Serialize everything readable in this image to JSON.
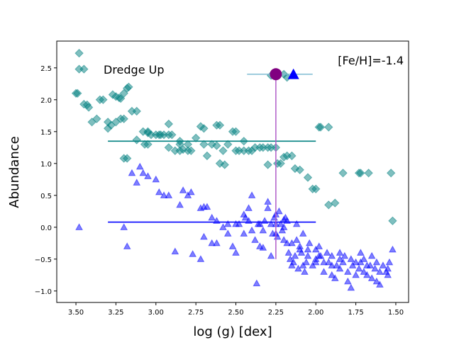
{
  "chart_data": {
    "type": "scatter",
    "title": "",
    "xlabel": "log (g) [dex]",
    "ylabel": "Abundance",
    "xlim": [
      3.62,
      1.42
    ],
    "ylim": [
      -1.18,
      2.92
    ],
    "xticks": [
      "3.50",
      "3.25",
      "3.00",
      "2.75",
      "2.50",
      "2.25",
      "2.00",
      "1.75",
      "1.50"
    ],
    "xtick_values": [
      3.5,
      3.25,
      3.0,
      2.75,
      2.5,
      2.25,
      2.0,
      1.75,
      1.5
    ],
    "yticks": [
      "2.5",
      "2.0",
      "1.5",
      "1.0",
      "0.5",
      "0.0",
      "−0.5",
      "−1.0"
    ],
    "ytick_values": [
      2.5,
      2.0,
      1.5,
      1.0,
      0.5,
      0.0,
      -0.5,
      -1.0
    ],
    "annotations": {
      "dredge_up": "Dredge Up",
      "metallicity": "[Fe/H]=-1.4"
    },
    "colors": {
      "teal": "#008080",
      "blue": "#0000ff",
      "errorbar_h": "#7fbcd2",
      "errorbar_v": "#b05cc8",
      "marker_purple": "#800080"
    },
    "hlines": [
      {
        "name": "teal-mean-line",
        "y": 1.35,
        "x_from": 3.3,
        "x_to": 2.0,
        "color": "#008080"
      },
      {
        "name": "blue-mean-line",
        "y": 0.08,
        "x_from": 3.3,
        "x_to": 2.0,
        "color": "#0000ff"
      }
    ],
    "errorbars": {
      "horizontal": {
        "y": 2.4,
        "x_from": 2.43,
        "x_to": 2.02
      },
      "vertical": {
        "x": 2.25,
        "y_from": 2.4,
        "y_to": -0.5
      }
    },
    "markers": [
      {
        "name": "dredge-up-circle",
        "shape": "circle",
        "x": 2.25,
        "y": 2.4,
        "color": "#800080"
      },
      {
        "name": "dredge-up-triangle",
        "shape": "triangle",
        "x": 2.14,
        "y": 2.4,
        "color": "#0000ff"
      }
    ],
    "series": [
      {
        "name": "teal-diamonds",
        "marker": "diamond",
        "color": "#008080",
        "points": [
          [
            3.48,
            2.73
          ],
          [
            3.48,
            2.48
          ],
          [
            3.45,
            2.48
          ],
          [
            3.5,
            2.1
          ],
          [
            3.49,
            2.1
          ],
          [
            3.45,
            1.93
          ],
          [
            3.43,
            1.92
          ],
          [
            3.42,
            1.88
          ],
          [
            3.4,
            1.65
          ],
          [
            3.37,
            1.7
          ],
          [
            3.35,
            2.0
          ],
          [
            3.33,
            2.0
          ],
          [
            3.3,
            1.65
          ],
          [
            3.3,
            1.55
          ],
          [
            3.28,
            1.6
          ],
          [
            3.25,
            2.05
          ],
          [
            3.27,
            2.08
          ],
          [
            3.23,
            2.03
          ],
          [
            3.22,
            2.02
          ],
          [
            3.2,
            2.1
          ],
          [
            3.18,
            2.18
          ],
          [
            3.17,
            2.2
          ],
          [
            3.2,
            1.7
          ],
          [
            3.22,
            1.7
          ],
          [
            3.25,
            1.65
          ],
          [
            3.15,
            1.82
          ],
          [
            3.12,
            1.82
          ],
          [
            3.08,
            1.5
          ],
          [
            3.05,
            1.48
          ],
          [
            3.03,
            1.45
          ],
          [
            3.0,
            1.45
          ],
          [
            2.98,
            1.45
          ],
          [
            2.95,
            1.45
          ],
          [
            2.92,
            1.45
          ],
          [
            2.9,
            1.45
          ],
          [
            2.92,
            1.62
          ],
          [
            2.88,
            1.2
          ],
          [
            2.85,
            1.35
          ],
          [
            2.83,
            1.22
          ],
          [
            2.8,
            1.2
          ],
          [
            2.78,
            1.2
          ],
          [
            2.75,
            1.4
          ],
          [
            2.72,
            1.58
          ],
          [
            2.7,
            1.55
          ],
          [
            2.68,
            1.12
          ],
          [
            2.65,
            1.3
          ],
          [
            2.62,
            1.6
          ],
          [
            2.6,
            1.6
          ],
          [
            2.58,
            1.2
          ],
          [
            2.55,
            1.3
          ],
          [
            2.52,
            1.5
          ],
          [
            2.5,
            1.5
          ],
          [
            2.48,
            1.2
          ],
          [
            2.45,
            1.35
          ],
          [
            2.42,
            1.2
          ],
          [
            2.4,
            1.2
          ],
          [
            2.38,
            1.25
          ],
          [
            2.35,
            1.25
          ],
          [
            2.33,
            1.25
          ],
          [
            2.3,
            1.25
          ],
          [
            2.28,
            1.25
          ],
          [
            2.25,
            1.25
          ],
          [
            2.24,
            1.0
          ],
          [
            2.22,
            1.0
          ],
          [
            2.2,
            1.1
          ],
          [
            2.18,
            1.12
          ],
          [
            2.15,
            1.12
          ],
          [
            2.13,
            0.92
          ],
          [
            2.1,
            0.9
          ],
          [
            2.05,
            0.78
          ],
          [
            2.02,
            0.6
          ],
          [
            2.0,
            0.6
          ],
          [
            1.98,
            1.57
          ],
          [
            1.97,
            1.57
          ],
          [
            1.92,
            1.57
          ],
          [
            1.92,
            0.35
          ],
          [
            1.88,
            0.38
          ],
          [
            1.83,
            0.85
          ],
          [
            1.73,
            0.85
          ],
          [
            1.72,
            0.85
          ],
          [
            1.67,
            0.85
          ],
          [
            1.53,
            0.85
          ],
          [
            1.52,
            0.1
          ],
          [
            3.07,
            1.3
          ],
          [
            3.05,
            1.3
          ],
          [
            3.18,
            1.08
          ],
          [
            3.2,
            1.08
          ],
          [
            2.57,
            0.98
          ],
          [
            2.6,
            1.0
          ],
          [
            2.62,
            1.28
          ],
          [
            2.45,
            1.2
          ],
          [
            2.3,
            0.98
          ],
          [
            3.12,
            1.37
          ],
          [
            2.97,
            1.45
          ],
          [
            2.85,
            1.2
          ],
          [
            2.92,
            1.25
          ],
          [
            2.7,
            1.3
          ],
          [
            2.8,
            1.3
          ],
          [
            2.28,
            2.38
          ],
          [
            2.2,
            2.4
          ],
          [
            2.18,
            2.35
          ],
          [
            3.05,
            1.5
          ],
          [
            2.85,
            1.3
          ],
          [
            2.5,
            1.2
          ]
        ]
      },
      {
        "name": "blue-triangles",
        "marker": "triangle",
        "color": "#0000ff",
        "points": [
          [
            3.48,
            0.0
          ],
          [
            3.2,
            0.0
          ],
          [
            3.1,
            0.95
          ],
          [
            3.08,
            0.85
          ],
          [
            3.05,
            0.8
          ],
          [
            3.0,
            0.75
          ],
          [
            2.98,
            0.55
          ],
          [
            2.95,
            0.5
          ],
          [
            3.12,
            0.7
          ],
          [
            3.15,
            0.85
          ],
          [
            2.92,
            0.5
          ],
          [
            2.85,
            0.35
          ],
          [
            2.83,
            0.58
          ],
          [
            2.8,
            0.5
          ],
          [
            2.78,
            0.55
          ],
          [
            2.72,
            0.3
          ],
          [
            2.7,
            0.32
          ],
          [
            2.68,
            0.32
          ],
          [
            3.18,
            -0.3
          ],
          [
            2.88,
            -0.38
          ],
          [
            2.77,
            -0.42
          ],
          [
            2.72,
            -0.5
          ],
          [
            2.65,
            -0.25
          ],
          [
            2.62,
            -0.25
          ],
          [
            2.55,
            -0.1
          ],
          [
            2.52,
            -0.3
          ],
          [
            2.5,
            -0.4
          ],
          [
            2.48,
            0.05
          ],
          [
            2.45,
            0.2
          ],
          [
            2.42,
            0.1
          ],
          [
            2.4,
            -0.05
          ],
          [
            2.38,
            -0.2
          ],
          [
            2.36,
            0.05
          ],
          [
            2.35,
            -0.3
          ],
          [
            2.33,
            -0.32
          ],
          [
            2.32,
            0.1
          ],
          [
            2.3,
            0.3
          ],
          [
            2.28,
            -0.45
          ],
          [
            2.27,
            -0.1
          ],
          [
            2.26,
            0.15
          ],
          [
            2.25,
            0.2
          ],
          [
            2.24,
            -0.15
          ],
          [
            2.23,
            0.25
          ],
          [
            2.22,
            0.05
          ],
          [
            2.21,
            -0.05
          ],
          [
            2.2,
            0.0
          ],
          [
            2.19,
            0.15
          ],
          [
            2.18,
            -0.25
          ],
          [
            2.17,
            -0.4
          ],
          [
            2.16,
            -0.5
          ],
          [
            2.15,
            -0.6
          ],
          [
            2.14,
            -0.55
          ],
          [
            2.13,
            -0.45
          ],
          [
            2.12,
            -0.2
          ],
          [
            2.11,
            -0.65
          ],
          [
            2.1,
            -0.3
          ],
          [
            2.09,
            -0.4
          ],
          [
            2.08,
            -0.6
          ],
          [
            2.07,
            -0.7
          ],
          [
            2.06,
            -0.55
          ],
          [
            2.05,
            -0.35
          ],
          [
            2.04,
            -0.25
          ],
          [
            2.02,
            -0.6
          ],
          [
            2.0,
            -0.55
          ],
          [
            1.98,
            -0.3
          ],
          [
            1.97,
            -0.45
          ],
          [
            1.95,
            -0.7
          ],
          [
            1.93,
            -0.4
          ],
          [
            1.92,
            -0.55
          ],
          [
            1.9,
            -0.75
          ],
          [
            1.88,
            -0.8
          ],
          [
            1.87,
            -0.6
          ],
          [
            1.85,
            -0.4
          ],
          [
            1.83,
            -0.55
          ],
          [
            1.82,
            -0.45
          ],
          [
            1.8,
            -0.85
          ],
          [
            1.78,
            -0.95
          ],
          [
            1.77,
            -0.6
          ],
          [
            1.75,
            -0.55
          ],
          [
            1.73,
            -0.65
          ],
          [
            1.72,
            -0.4
          ],
          [
            1.7,
            -0.5
          ],
          [
            1.68,
            -0.75
          ],
          [
            1.66,
            -0.6
          ],
          [
            1.65,
            -0.45
          ],
          [
            1.63,
            -0.65
          ],
          [
            1.62,
            -0.85
          ],
          [
            1.6,
            -0.7
          ],
          [
            1.58,
            -0.6
          ],
          [
            1.56,
            -0.7
          ],
          [
            1.55,
            -0.65
          ],
          [
            1.54,
            -0.55
          ],
          [
            1.52,
            -0.35
          ],
          [
            2.37,
            -0.88
          ],
          [
            2.45,
            -0.1
          ],
          [
            2.33,
            -0.05
          ],
          [
            2.3,
            0.4
          ],
          [
            2.4,
            0.5
          ],
          [
            2.5,
            0.05
          ],
          [
            2.58,
            0.0
          ],
          [
            2.62,
            0.1
          ],
          [
            2.65,
            0.15
          ],
          [
            2.35,
            0.05
          ],
          [
            2.25,
            -0.1
          ],
          [
            2.2,
            -0.2
          ],
          [
            2.15,
            -0.25
          ],
          [
            2.1,
            -0.35
          ],
          [
            2.05,
            -0.45
          ],
          [
            2.0,
            -0.5
          ],
          [
            1.95,
            -0.55
          ],
          [
            1.9,
            -0.6
          ],
          [
            1.85,
            -0.65
          ],
          [
            1.8,
            -0.7
          ],
          [
            1.75,
            -0.75
          ],
          [
            1.7,
            -0.7
          ],
          [
            1.65,
            -0.8
          ],
          [
            1.6,
            -0.9
          ],
          [
            1.55,
            -0.75
          ],
          [
            2.42,
            0.3
          ],
          [
            2.44,
            0.15
          ],
          [
            2.28,
            0.05
          ],
          [
            2.18,
            0.1
          ],
          [
            2.12,
            0.05
          ],
          [
            2.08,
            -0.1
          ],
          [
            2.0,
            -0.35
          ],
          [
            1.98,
            -0.45
          ],
          [
            1.9,
            -0.45
          ],
          [
            1.85,
            -0.5
          ],
          [
            1.78,
            -0.5
          ],
          [
            1.72,
            -0.55
          ],
          [
            1.68,
            -0.6
          ],
          [
            1.62,
            -0.55
          ],
          [
            2.7,
            -0.15
          ],
          [
            2.55,
            0.05
          ],
          [
            2.25,
            0.05
          ],
          [
            2.2,
            0.12
          ]
        ]
      }
    ]
  }
}
